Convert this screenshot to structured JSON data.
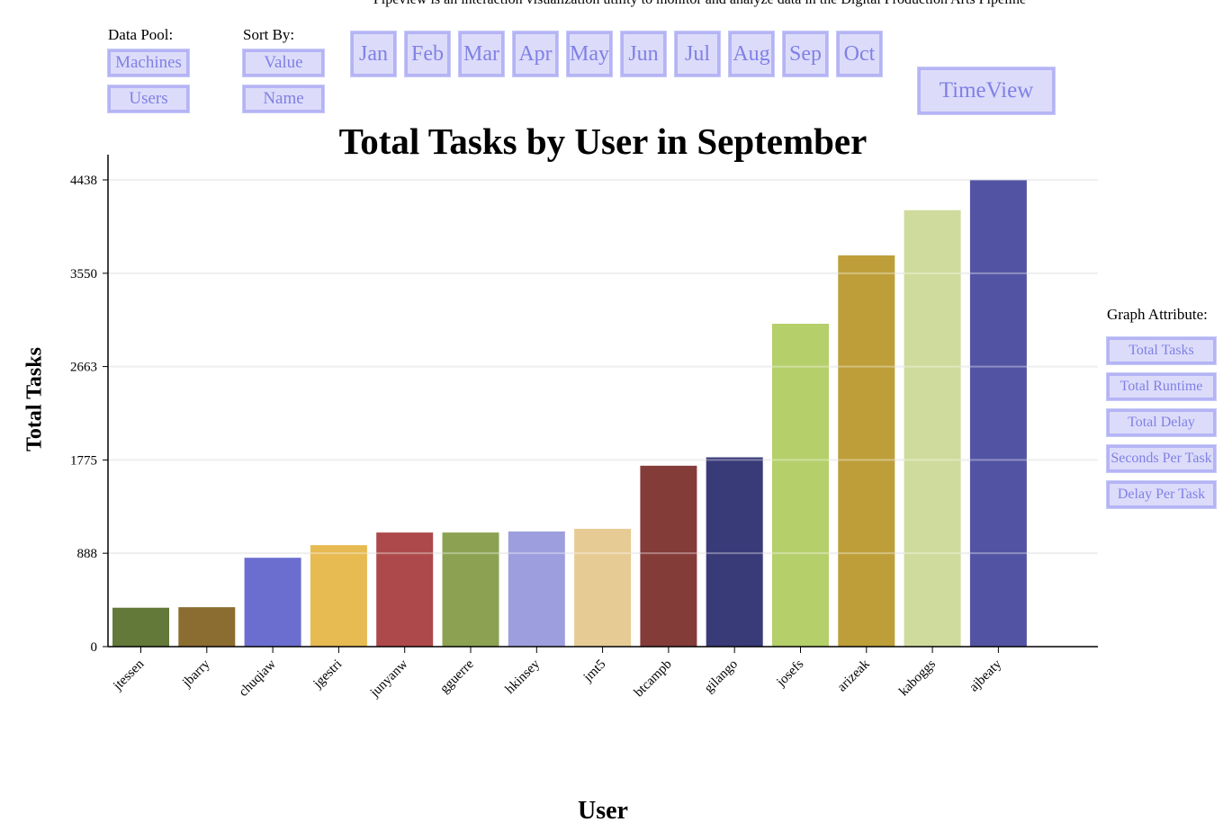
{
  "header": {
    "subtitle": "Pipeview is an interaction visualization utility to monitor and analyze data in the Digital Production Arts Pipeline"
  },
  "controls": {
    "data_pool_label": "Data Pool:",
    "data_pool_options": [
      "Machines",
      "Users"
    ],
    "sort_by_label": "Sort By:",
    "sort_by_options": [
      "Value",
      "Name"
    ],
    "months": [
      "Jan",
      "Feb",
      "Mar",
      "Apr",
      "May",
      "Jun",
      "Jul",
      "Aug",
      "Sep",
      "Oct"
    ],
    "timeview_label": "TimeView",
    "graph_attribute_label": "Graph Attribute:",
    "graph_attributes": [
      "Total Tasks",
      "Total Runtime",
      "Total Delay",
      "Seconds Per Task",
      "Delay Per Task"
    ]
  },
  "colors": {
    "button_bg": "#dcdcfa",
    "button_border": "#b4b4f5",
    "button_text": "#8080e6"
  },
  "chart_data": {
    "type": "bar",
    "title": "Total Tasks by User in September",
    "xlabel": "User",
    "ylabel": "Total Tasks",
    "ylim": [
      0,
      4438
    ],
    "yticks": [
      0,
      888,
      1775,
      2663,
      3550,
      4438
    ],
    "grid": true,
    "categories": [
      "jtessen",
      "jbarry",
      "chuqiaw",
      "jgestri",
      "junyanw",
      "gguerre",
      "hkinsey",
      "jmt5",
      "btcampb",
      "gilango",
      "josefs",
      "arizeak",
      "kaboggs",
      "ajbeaty"
    ],
    "values": [
      370,
      375,
      845,
      965,
      1085,
      1085,
      1095,
      1120,
      1720,
      1800,
      3070,
      3720,
      4150,
      4438
    ],
    "bar_colors": [
      "#637939",
      "#8c6d31",
      "#6b6ecf",
      "#e7ba52",
      "#ad494a",
      "#8ca252",
      "#9c9ede",
      "#e7cb94",
      "#843c39",
      "#393b79",
      "#b5cf6b",
      "#bd9e39",
      "#cedb9c",
      "#5254a3"
    ]
  }
}
